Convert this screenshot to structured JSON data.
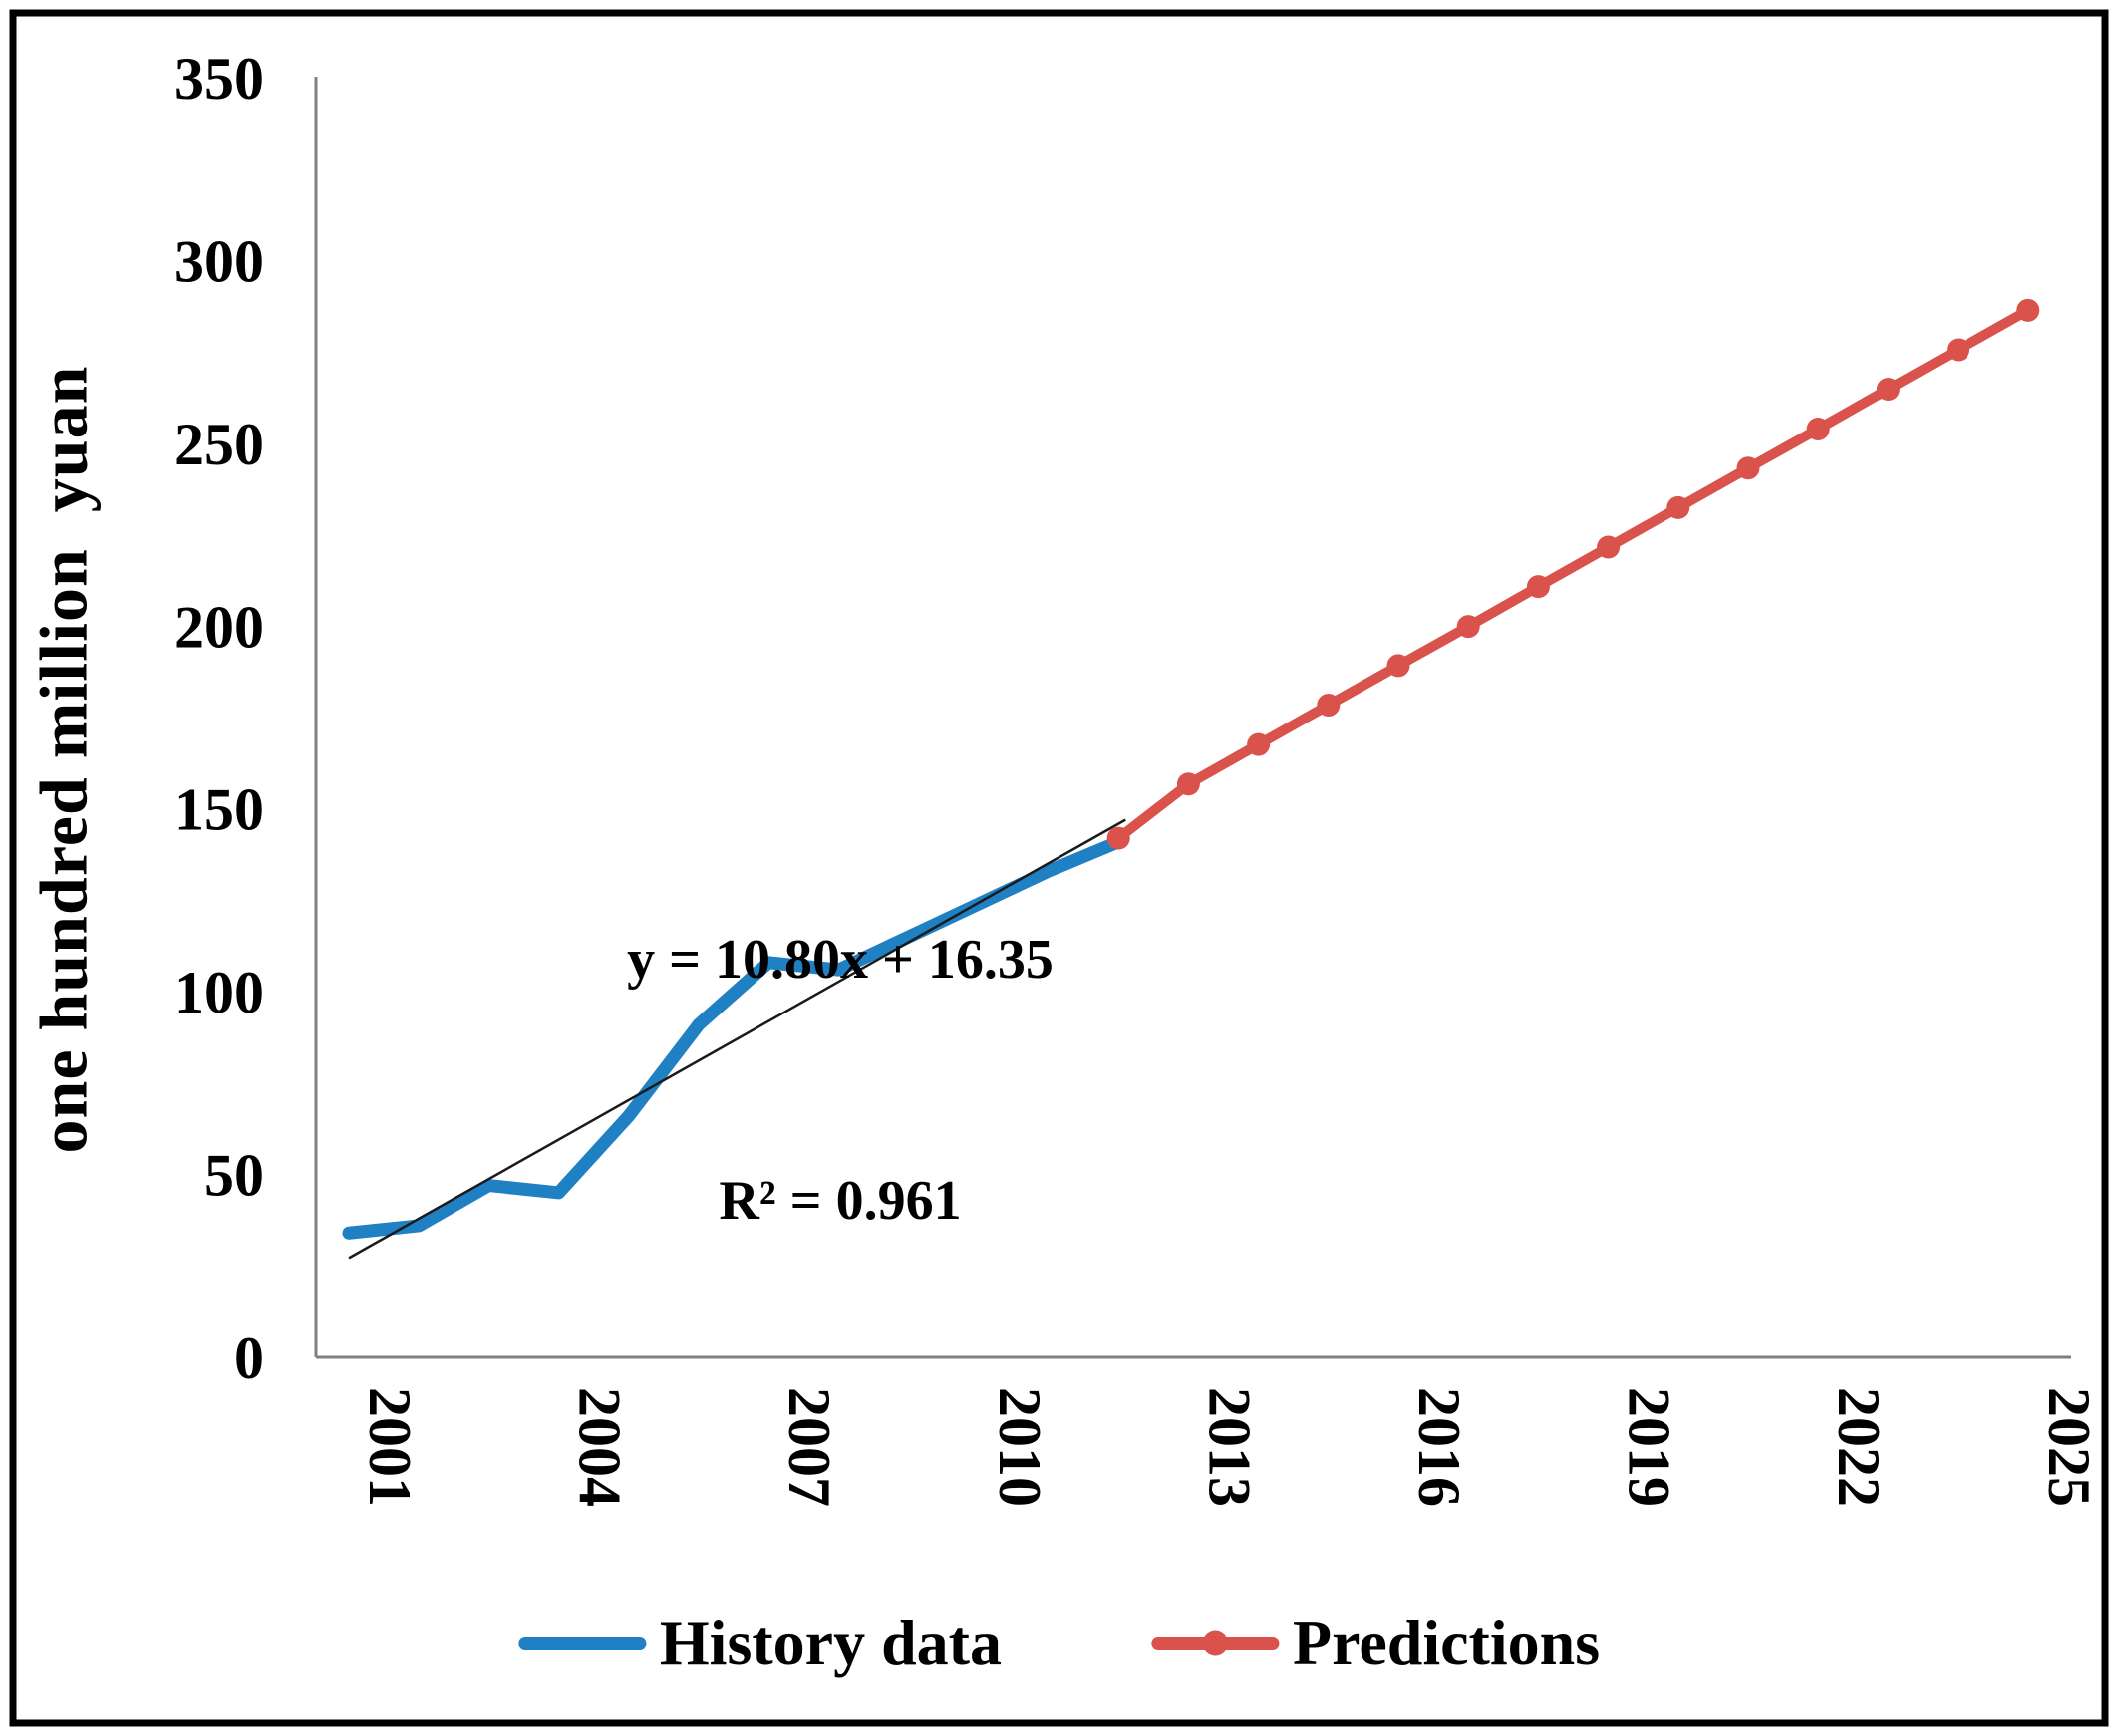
{
  "chart_data": {
    "type": "line",
    "title": "",
    "xlabel": "",
    "ylabel": "one hundred million  yuan",
    "ylim": [
      0,
      350
    ],
    "ytick_step": 50,
    "xticks": [
      2001,
      2004,
      2007,
      2010,
      2013,
      2016,
      2019,
      2022,
      2025
    ],
    "grid": false,
    "legend_position": "bottom",
    "series": [
      {
        "name": "History data",
        "color": "#1F81C3",
        "marker": "none",
        "x": [
          2001,
          2002,
          2003,
          2004,
          2005,
          2006,
          2007,
          2008,
          2009,
          2010,
          2011,
          2012
        ],
        "values": [
          34,
          36,
          47,
          45,
          66,
          91,
          108,
          106,
          115,
          124,
          133,
          141
        ]
      },
      {
        "name": "Predictions",
        "color": "#D9524B",
        "marker": "circle",
        "x": [
          2012,
          2013,
          2014,
          2015,
          2016,
          2017,
          2018,
          2019,
          2020,
          2021,
          2022,
          2023,
          2024,
          2025
        ],
        "values": [
          142,
          156.8,
          167.6,
          178.4,
          189.2,
          199.9,
          210.8,
          221.6,
          232.4,
          243.2,
          253.9,
          264.8,
          275.6,
          286.4
        ]
      }
    ],
    "trendline": {
      "label_line1": "y = 10.80x + 16.35",
      "label_line2": "R² = 0.961",
      "slope": 10.8,
      "intercept": 16.35,
      "x_index_range": [
        1,
        12.1
      ],
      "color": "#1A1A1A"
    }
  },
  "colors": {
    "history": "#1F81C3",
    "predictions": "#D9524B",
    "axis": "#7F7F7F",
    "trendline": "#1A1A1A",
    "border": "#000000",
    "text": "#000000"
  }
}
